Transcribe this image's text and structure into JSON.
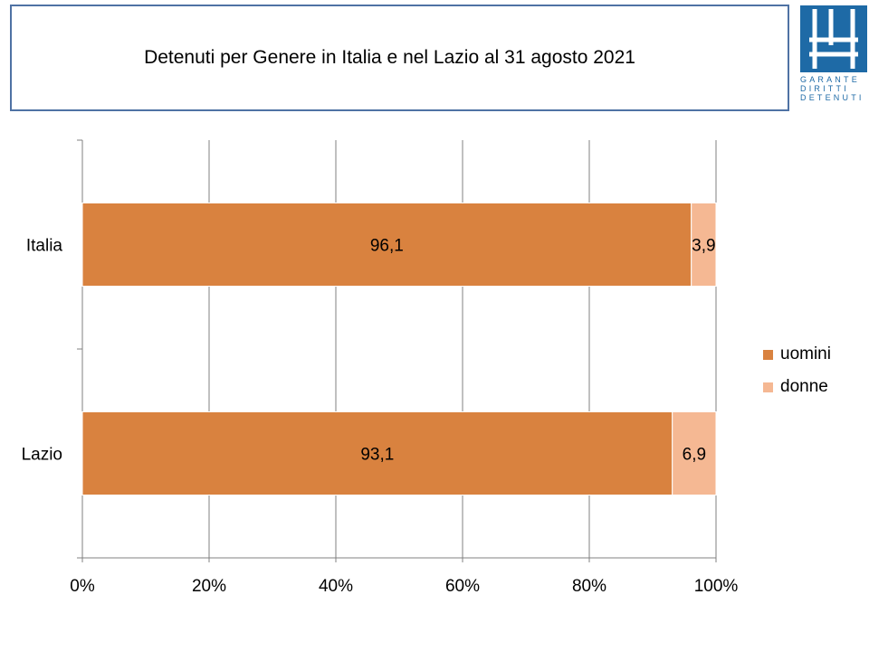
{
  "title": "Detenuti per Genere in Italia e nel Lazio al 31 agosto 2021",
  "logo": {
    "lines": [
      "GARANTE",
      "DIRITTI",
      "DETENUTI"
    ],
    "color": "#1e6aa6"
  },
  "colors": {
    "border": "#4f72a4",
    "uomini": "#d9823f",
    "donne": "#f5b893",
    "grid": "#808080"
  },
  "chart_data": {
    "type": "bar",
    "orientation": "horizontal",
    "stacking": "percent",
    "categories": [
      "Italia",
      "Lazio"
    ],
    "series": [
      {
        "name": "uomini",
        "values": [
          96.1,
          93.1
        ],
        "labels": [
          "96,1",
          "93,1"
        ]
      },
      {
        "name": "donne",
        "values": [
          3.9,
          6.9
        ],
        "labels": [
          "3,9",
          "6,9"
        ]
      }
    ],
    "xlim": [
      0,
      100
    ],
    "xticks": [
      "0%",
      "20%",
      "40%",
      "60%",
      "80%",
      "100%"
    ],
    "grid": true,
    "legend_position": "right"
  }
}
